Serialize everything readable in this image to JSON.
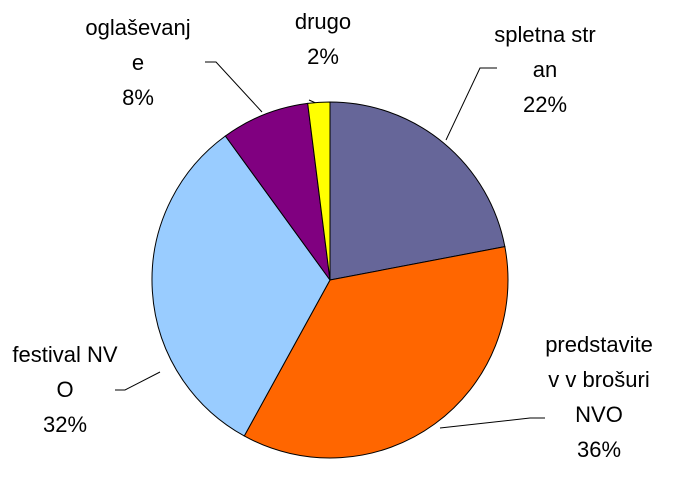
{
  "chart_data": {
    "type": "pie",
    "categories": [
      "spletna stran",
      "predstavitev v brošuri NVO",
      "festival NVO",
      "oglaševanje",
      "drugo"
    ],
    "values": [
      22,
      36,
      32,
      8,
      2
    ],
    "value_labels": [
      "22%",
      "36%",
      "32%",
      "8%",
      "2%"
    ],
    "colors": [
      "#666699",
      "#ff6600",
      "#99ccff",
      "#800080",
      "#ffff00"
    ]
  }
}
